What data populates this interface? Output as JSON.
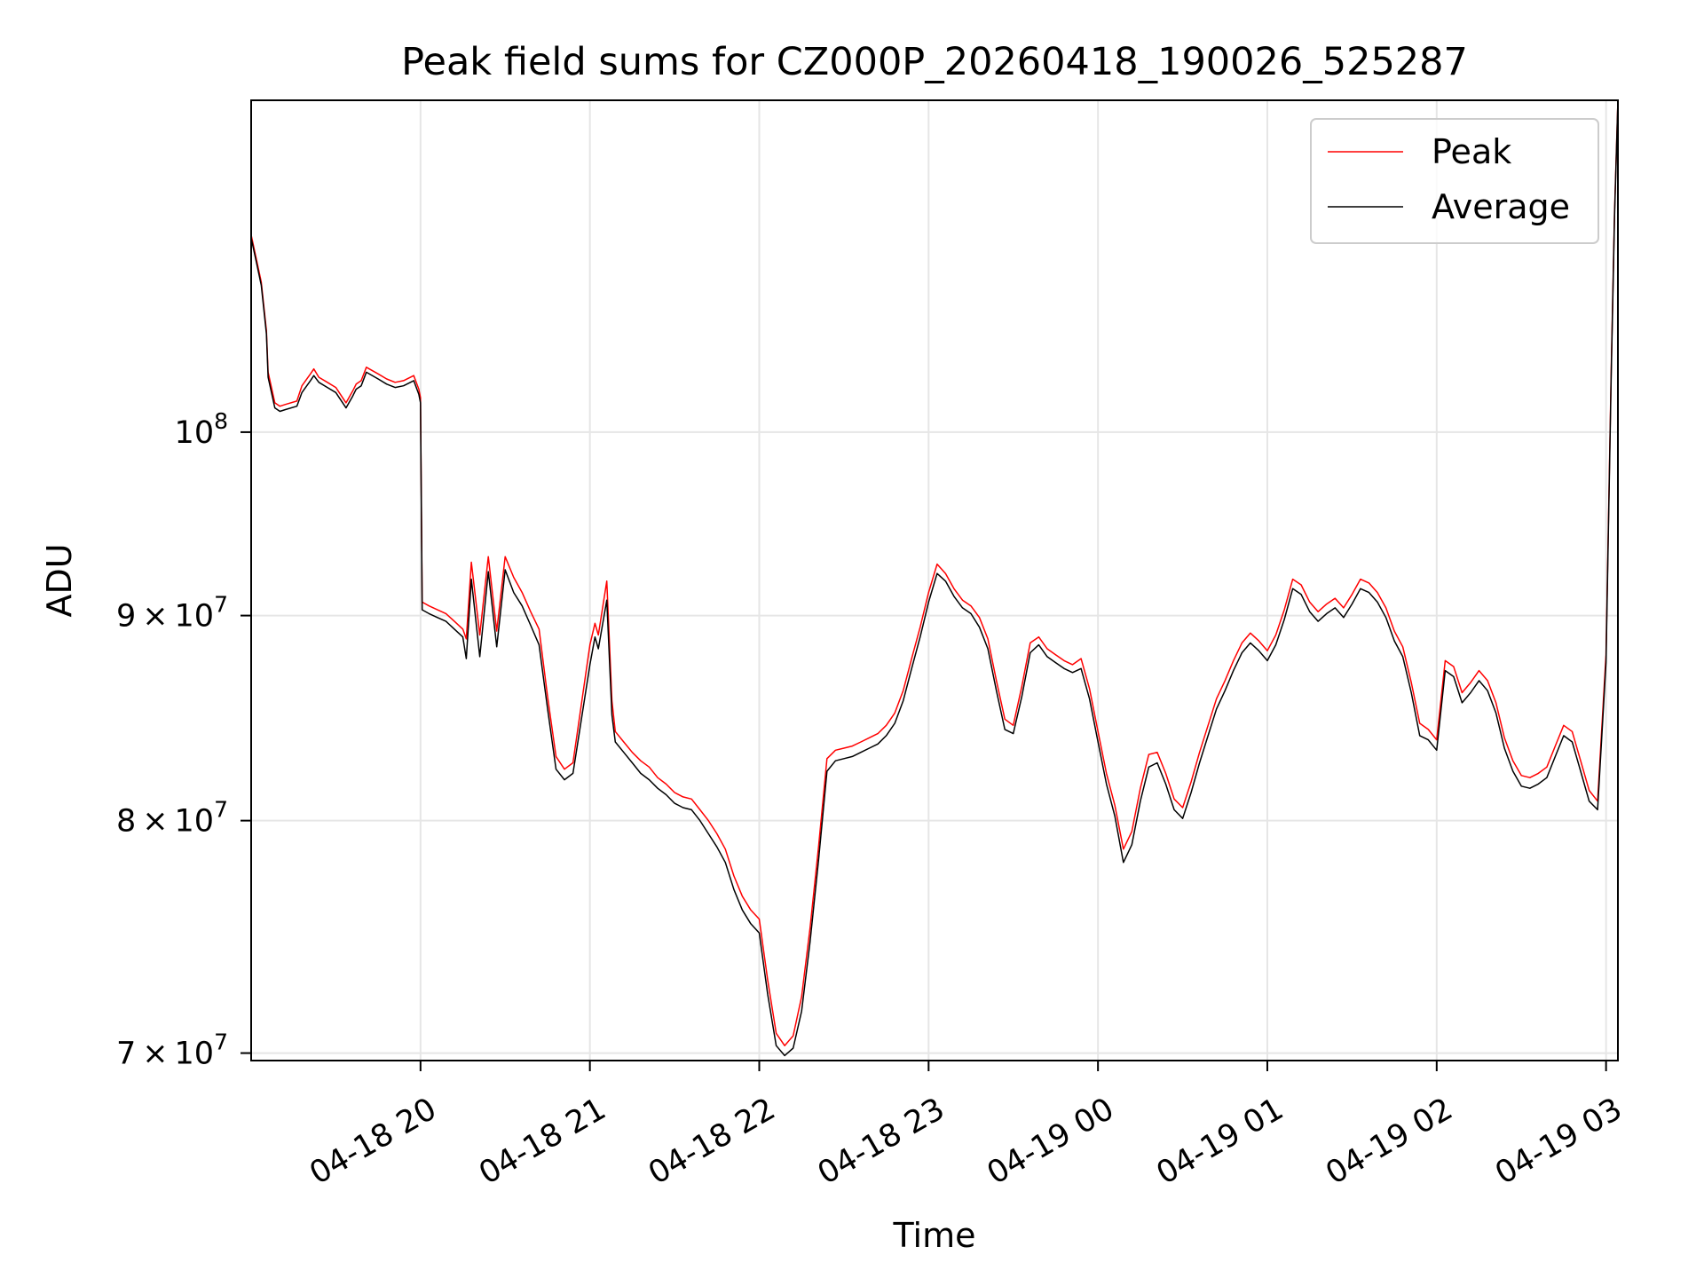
{
  "chart_data": {
    "type": "line",
    "title": "Peak field sums for CZ000P_20260418_190026_525287",
    "xlabel": "Time",
    "ylabel": "ADU",
    "yscale": "log",
    "grid": true,
    "legend_position": "top-right",
    "x_unit": "hours since 2026-04-18 19:00",
    "xlim": [
      19.0,
      27.07
    ],
    "ylim": [
      69700000,
      121000000
    ],
    "x_ticks": [
      {
        "value": 20,
        "label": "04-18 20"
      },
      {
        "value": 21,
        "label": "04-18 21"
      },
      {
        "value": 22,
        "label": "04-18 22"
      },
      {
        "value": 23,
        "label": "04-18 23"
      },
      {
        "value": 24,
        "label": "04-19 00"
      },
      {
        "value": 25,
        "label": "04-19 01"
      },
      {
        "value": 26,
        "label": "04-19 02"
      },
      {
        "value": 27,
        "label": "04-19 03"
      }
    ],
    "y_ticks": [
      {
        "value": 70000000,
        "base": "7 × 10",
        "exp": "7"
      },
      {
        "value": 80000000,
        "base": "8 × 10",
        "exp": "7"
      },
      {
        "value": 90000000,
        "base": "9 × 10",
        "exp": "7"
      },
      {
        "value": 100000000,
        "base": "10",
        "exp": "8"
      }
    ],
    "series": [
      {
        "name": "Peak",
        "color": "#ff0000"
      },
      {
        "name": "Average",
        "color": "#000000"
      }
    ],
    "x": [
      19.0,
      19.03,
      19.06,
      19.09,
      19.1,
      19.14,
      19.17,
      19.2,
      19.27,
      19.3,
      19.35,
      19.37,
      19.4,
      19.45,
      19.5,
      19.56,
      19.6,
      19.62,
      19.65,
      19.68,
      19.75,
      19.8,
      19.85,
      19.9,
      19.96,
      19.99,
      20.0,
      20.01,
      20.05,
      20.1,
      20.15,
      20.2,
      20.25,
      20.27,
      20.3,
      20.35,
      20.4,
      20.45,
      20.5,
      20.55,
      20.6,
      20.65,
      20.7,
      20.75,
      20.8,
      20.85,
      20.9,
      21.0,
      21.03,
      21.05,
      21.1,
      21.13,
      21.15,
      21.2,
      21.25,
      21.3,
      21.35,
      21.4,
      21.45,
      21.5,
      21.55,
      21.6,
      21.65,
      21.7,
      21.75,
      21.8,
      21.85,
      21.9,
      21.95,
      22.0,
      22.05,
      22.1,
      22.15,
      22.2,
      22.25,
      22.3,
      22.35,
      22.4,
      22.45,
      22.5,
      22.55,
      22.6,
      22.65,
      22.7,
      22.75,
      22.8,
      22.85,
      22.9,
      22.95,
      23.0,
      23.05,
      23.1,
      23.15,
      23.2,
      23.25,
      23.3,
      23.35,
      23.4,
      23.45,
      23.5,
      23.55,
      23.6,
      23.65,
      23.7,
      23.75,
      23.8,
      23.85,
      23.9,
      23.95,
      24.0,
      24.05,
      24.1,
      24.15,
      24.2,
      24.25,
      24.3,
      24.35,
      24.4,
      24.45,
      24.5,
      24.55,
      24.6,
      24.65,
      24.7,
      24.75,
      24.8,
      24.85,
      24.9,
      24.95,
      25.0,
      25.05,
      25.1,
      25.15,
      25.2,
      25.25,
      25.3,
      25.35,
      25.4,
      25.45,
      25.5,
      25.55,
      25.6,
      25.65,
      25.7,
      25.75,
      25.8,
      25.85,
      25.9,
      25.95,
      26.0,
      26.05,
      26.1,
      26.15,
      26.2,
      26.25,
      26.3,
      26.35,
      26.4,
      26.45,
      26.5,
      26.55,
      26.6,
      26.65,
      26.7,
      26.75,
      26.8,
      26.85,
      26.9,
      26.95,
      27.0,
      27.03,
      27.05,
      27.07
    ],
    "peak": [
      112000000,
      110500000,
      109000000,
      106000000,
      103500000,
      101700000,
      101500000,
      101600000,
      101800000,
      102700000,
      103400000,
      103700000,
      103200000,
      102900000,
      102600000,
      101700000,
      102400000,
      102800000,
      103000000,
      103800000,
      103400000,
      103100000,
      102900000,
      103000000,
      103300000,
      102500000,
      102000000,
      90700000,
      90500000,
      90300000,
      90100000,
      89700000,
      89300000,
      88800000,
      92800000,
      89000000,
      93100000,
      89200000,
      93100000,
      92000000,
      91200000,
      90200000,
      89300000,
      85900000,
      83000000,
      82400000,
      82700000,
      88500000,
      89600000,
      89000000,
      91800000,
      85700000,
      84200000,
      83700000,
      83200000,
      82800000,
      82500000,
      82000000,
      81700000,
      81300000,
      81100000,
      81000000,
      80500000,
      80000000,
      79400000,
      78700000,
      77500000,
      76600000,
      76000000,
      75600000,
      73000000,
      70800000,
      70300000,
      70700000,
      72300000,
      75200000,
      78800000,
      82900000,
      83300000,
      83400000,
      83500000,
      83700000,
      83900000,
      84100000,
      84500000,
      85100000,
      86200000,
      87800000,
      89400000,
      91200000,
      92700000,
      92200000,
      91400000,
      90800000,
      90500000,
      89900000,
      88800000,
      86700000,
      84800000,
      84500000,
      86400000,
      88600000,
      88900000,
      88300000,
      88000000,
      87700000,
      87500000,
      87800000,
      86300000,
      84200000,
      82200000,
      80700000,
      78700000,
      79500000,
      81500000,
      83100000,
      83200000,
      82200000,
      81000000,
      80600000,
      81800000,
      83200000,
      84500000,
      85800000,
      86700000,
      87700000,
      88600000,
      89100000,
      88700000,
      88200000,
      89000000,
      90300000,
      91900000,
      91600000,
      90700000,
      90200000,
      90600000,
      90900000,
      90400000,
      91100000,
      91900000,
      91700000,
      91200000,
      90400000,
      89200000,
      88400000,
      86600000,
      84600000,
      84300000,
      83800000,
      87700000,
      87400000,
      86100000,
      86600000,
      87200000,
      86700000,
      85600000,
      83900000,
      82800000,
      82100000,
      82000000,
      82200000,
      82500000,
      83500000,
      84500000,
      84200000,
      82800000,
      81400000,
      80900000,
      88000000,
      103500000,
      113500000,
      121000000
    ],
    "average": [
      111800000,
      110300000,
      108800000,
      105800000,
      103200000,
      101400000,
      101200000,
      101300000,
      101500000,
      102300000,
      103000000,
      103300000,
      102900000,
      102600000,
      102300000,
      101400000,
      102100000,
      102500000,
      102700000,
      103500000,
      103100000,
      102800000,
      102600000,
      102700000,
      103000000,
      102200000,
      101700000,
      90300000,
      90100000,
      89900000,
      89700000,
      89300000,
      88900000,
      87800000,
      91900000,
      87900000,
      92300000,
      88400000,
      92400000,
      91200000,
      90500000,
      89500000,
      88500000,
      85300000,
      82400000,
      81900000,
      82200000,
      87500000,
      88900000,
      88300000,
      90800000,
      85000000,
      83700000,
      83200000,
      82700000,
      82200000,
      81900000,
      81500000,
      81200000,
      80800000,
      80600000,
      80500000,
      80000000,
      79400000,
      78800000,
      78100000,
      76900000,
      76000000,
      75400000,
      75000000,
      72400000,
      70300000,
      69900000,
      70200000,
      71700000,
      74600000,
      78200000,
      82300000,
      82800000,
      82900000,
      83000000,
      83200000,
      83400000,
      83600000,
      84000000,
      84600000,
      85700000,
      87300000,
      88900000,
      90700000,
      92200000,
      91800000,
      91000000,
      90400000,
      90100000,
      89400000,
      88300000,
      86200000,
      84300000,
      84100000,
      85900000,
      88100000,
      88500000,
      87900000,
      87600000,
      87300000,
      87100000,
      87300000,
      85800000,
      83700000,
      81700000,
      80200000,
      78100000,
      78900000,
      80900000,
      82500000,
      82700000,
      81700000,
      80500000,
      80100000,
      81300000,
      82700000,
      84000000,
      85300000,
      86200000,
      87200000,
      88100000,
      88600000,
      88200000,
      87700000,
      88500000,
      89800000,
      91400000,
      91100000,
      90200000,
      89700000,
      90100000,
      90400000,
      89900000,
      90600000,
      91400000,
      91200000,
      90700000,
      89900000,
      88700000,
      87900000,
      86100000,
      84000000,
      83800000,
      83300000,
      87200000,
      86900000,
      85600000,
      86100000,
      86700000,
      86200000,
      85100000,
      83400000,
      82300000,
      81600000,
      81500000,
      81700000,
      82000000,
      83000000,
      84000000,
      83700000,
      82300000,
      80900000,
      80500000,
      87600000,
      103200000,
      113200000,
      121000000
    ]
  }
}
